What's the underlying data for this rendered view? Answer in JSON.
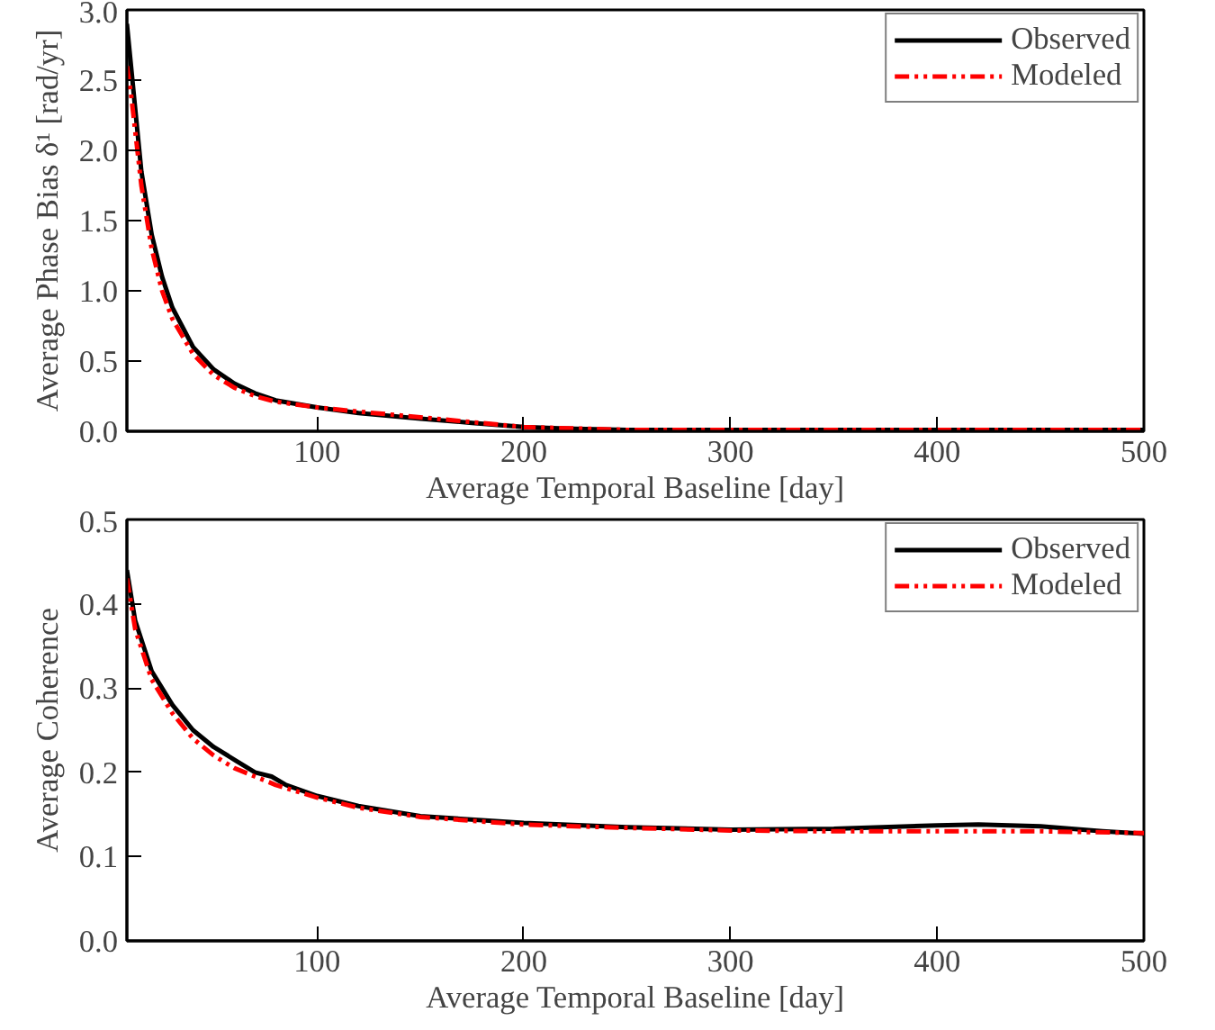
{
  "chart_data": [
    {
      "type": "line",
      "xlabel": "Average Temporal Baseline [day]",
      "ylabel": "Average Phase Bias δ¹ [rad/yr]",
      "xlim": [
        8,
        500
      ],
      "xticks": [
        100,
        200,
        300,
        400,
        500
      ],
      "ylim": [
        0,
        3
      ],
      "yticks": [
        {
          "value": 0,
          "label": "0.0"
        },
        {
          "value": 0.5,
          "label": "0.5"
        },
        {
          "value": 1,
          "label": "1.0"
        },
        {
          "value": 1.5,
          "label": "1.5"
        },
        {
          "value": 2,
          "label": "2.0"
        },
        {
          "value": 2.5,
          "label": "2.5"
        },
        {
          "value": 3,
          "label": "3.0"
        }
      ],
      "legend": "top right",
      "series": [
        {
          "name": "Observed",
          "color": "#000000",
          "line_style": "solid",
          "x": [
            8,
            10,
            15,
            20,
            25,
            30,
            40,
            50,
            60,
            70,
            80,
            100,
            120,
            150,
            175,
            200,
            220,
            250,
            300,
            400,
            500
          ],
          "values": [
            2.9,
            2.6,
            1.85,
            1.4,
            1.1,
            0.88,
            0.6,
            0.44,
            0.34,
            0.27,
            0.22,
            0.17,
            0.13,
            0.09,
            0.06,
            0.03,
            0.02,
            0.01,
            0.01,
            0.01,
            0.01
          ]
        },
        {
          "name": "Modeled",
          "color": "#ff0000",
          "line_style": "dashdotdot",
          "x": [
            8,
            10,
            15,
            20,
            25,
            30,
            40,
            50,
            60,
            70,
            80,
            100,
            120,
            150,
            200,
            250,
            500
          ],
          "values": [
            2.6,
            2.4,
            1.75,
            1.3,
            1.0,
            0.8,
            0.55,
            0.4,
            0.31,
            0.25,
            0.21,
            0.17,
            0.14,
            0.1,
            0.03,
            0.01,
            0.01
          ]
        }
      ]
    },
    {
      "type": "line",
      "xlabel": "Average Temporal Baseline [day]",
      "ylabel": "Average Coherence",
      "xlim": [
        8,
        500
      ],
      "xticks": [
        100,
        200,
        300,
        400,
        500
      ],
      "ylim": [
        0,
        0.5
      ],
      "yticks": [
        {
          "value": 0,
          "label": "0.0"
        },
        0.1,
        0.2,
        0.3,
        0.4,
        0.5
      ],
      "legend": "top right",
      "series": [
        {
          "name": "Observed",
          "color": "#000000",
          "line_style": "solid",
          "x": [
            8,
            12,
            20,
            30,
            40,
            50,
            60,
            70,
            78,
            85,
            100,
            120,
            150,
            200,
            250,
            300,
            350,
            400,
            420,
            450,
            480,
            500
          ],
          "values": [
            0.44,
            0.38,
            0.32,
            0.28,
            0.25,
            0.23,
            0.215,
            0.2,
            0.195,
            0.185,
            0.172,
            0.16,
            0.148,
            0.14,
            0.135,
            0.132,
            0.133,
            0.137,
            0.138,
            0.136,
            0.13,
            0.127
          ]
        },
        {
          "name": "Modeled",
          "color": "#ff0000",
          "line_style": "dashdotdot",
          "x": [
            8,
            12,
            20,
            30,
            40,
            50,
            60,
            70,
            80,
            100,
            120,
            150,
            200,
            250,
            300,
            350,
            400,
            450,
            500
          ],
          "values": [
            0.43,
            0.37,
            0.31,
            0.27,
            0.24,
            0.22,
            0.205,
            0.195,
            0.185,
            0.17,
            0.158,
            0.147,
            0.138,
            0.134,
            0.131,
            0.13,
            0.13,
            0.13,
            0.128
          ]
        }
      ]
    }
  ]
}
